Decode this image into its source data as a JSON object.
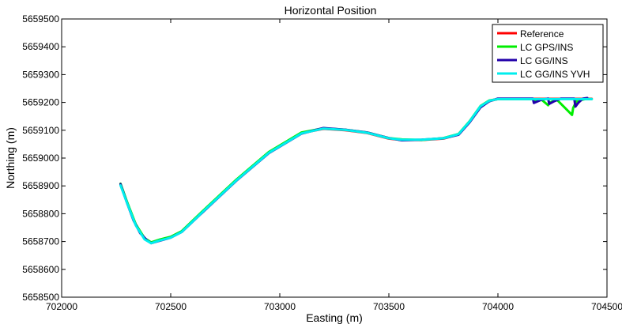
{
  "chart_data": {
    "type": "line",
    "title": "Horizontal Position",
    "xlabel": "Easting (m)",
    "ylabel": "Northing (m)",
    "xlim": [
      702000,
      704500
    ],
    "ylim": [
      5658500,
      5659500
    ],
    "xticks": [
      702000,
      702500,
      703000,
      703500,
      704000,
      704500
    ],
    "xtick_labels": [
      "702000",
      "702500",
      "703000",
      "703500",
      "704000",
      "704500"
    ],
    "yticks": [
      5658500,
      5658600,
      5658700,
      5658800,
      5658900,
      5659000,
      5659100,
      5659200,
      5659300,
      5659400,
      5659500
    ],
    "ytick_labels": [
      "5658500",
      "5658600",
      "5658700",
      "5658800",
      "5658900",
      "5659000",
      "5659100",
      "5659200",
      "5659300",
      "5659400",
      "5659500"
    ],
    "grid": false,
    "legend_position": "top-right",
    "series": [
      {
        "name": "Reference",
        "color": "#ff0000",
        "x": [
          702270,
          702300,
          702340,
          702380,
          702410,
          702450,
          702500,
          702550,
          702650,
          702800,
          702950,
          703100,
          703200,
          703300,
          703400,
          703500,
          703560,
          703650,
          703750,
          703820,
          703870,
          703920,
          703960,
          704000,
          704100,
          704200,
          704300,
          704400,
          704430
        ],
        "y": [
          5658905,
          5658840,
          5658760,
          5658710,
          5658695,
          5658705,
          5658715,
          5658735,
          5658810,
          5658920,
          5659020,
          5659090,
          5659105,
          5659100,
          5659090,
          5659070,
          5659065,
          5659065,
          5659070,
          5659085,
          5659130,
          5659185,
          5659205,
          5659212,
          5659213,
          5659213,
          5659213,
          5659213,
          5659213
        ]
      },
      {
        "name": "LC GPS/INS",
        "color": "#00ee00",
        "x": [
          702270,
          702300,
          702340,
          702380,
          702410,
          702450,
          702500,
          702550,
          702650,
          702800,
          702950,
          703100,
          703200,
          703300,
          703400,
          703500,
          703560,
          703650,
          703750,
          703820,
          703870,
          703920,
          703960,
          704000,
          704100,
          704160,
          704170,
          704200,
          704230,
          704240,
          704270,
          704340,
          704345,
          704360,
          704400,
          704430
        ],
        "y": [
          5658908,
          5658842,
          5658762,
          5658712,
          5658697,
          5658707,
          5658717,
          5658737,
          5658812,
          5658922,
          5659022,
          5659092,
          5659107,
          5659102,
          5659092,
          5659072,
          5659067,
          5659065,
          5659072,
          5659087,
          5659132,
          5659187,
          5659207,
          5659212,
          5659212,
          5659212,
          5659205,
          5659210,
          5659190,
          5659200,
          5659210,
          5659155,
          5659180,
          5659205,
          5659212,
          5659212
        ]
      },
      {
        "name": "LC GG/INS",
        "color": "#2200aa",
        "x": [
          702270,
          702300,
          702330,
          702360,
          702390,
          702410,
          702450,
          702500,
          702550,
          702650,
          702800,
          702950,
          703100,
          703200,
          703300,
          703400,
          703500,
          703560,
          703650,
          703750,
          703820,
          703870,
          703920,
          703960,
          704000,
          704100,
          704160,
          704165,
          704200,
          704230,
          704235,
          704260,
          704290,
          704300,
          704350,
          704355,
          704370,
          704390,
          704410
        ],
        "y": [
          5658906,
          5658838,
          5658775,
          5658730,
          5658705,
          5658694,
          5658703,
          5658714,
          5658734,
          5658808,
          5658918,
          5659018,
          5659088,
          5659108,
          5659102,
          5659092,
          5659072,
          5659064,
          5659066,
          5659071,
          5659084,
          5659128,
          5659182,
          5659204,
          5659214,
          5659214,
          5659214,
          5659198,
          5659210,
          5659214,
          5659195,
          5659205,
          5659214,
          5659214,
          5659214,
          5659185,
          5659200,
          5659214,
          5659216
        ]
      },
      {
        "name": "LC GG/INS YVH",
        "color": "#00eeee",
        "x": [
          702270,
          702300,
          702340,
          702380,
          702410,
          702450,
          702500,
          702550,
          702650,
          702800,
          702950,
          703100,
          703200,
          703300,
          703400,
          703500,
          703560,
          703650,
          703750,
          703820,
          703870,
          703920,
          703960,
          704000,
          704100,
          704200,
          704300,
          704400,
          704430
        ],
        "y": [
          5658902,
          5658838,
          5658758,
          5658708,
          5658694,
          5658704,
          5658714,
          5658734,
          5658809,
          5658919,
          5659019,
          5659089,
          5659106,
          5659101,
          5659091,
          5659071,
          5659066,
          5659066,
          5659071,
          5659086,
          5659131,
          5659186,
          5659206,
          5659212,
          5659212,
          5659212,
          5659212,
          5659212,
          5659212
        ]
      }
    ]
  }
}
